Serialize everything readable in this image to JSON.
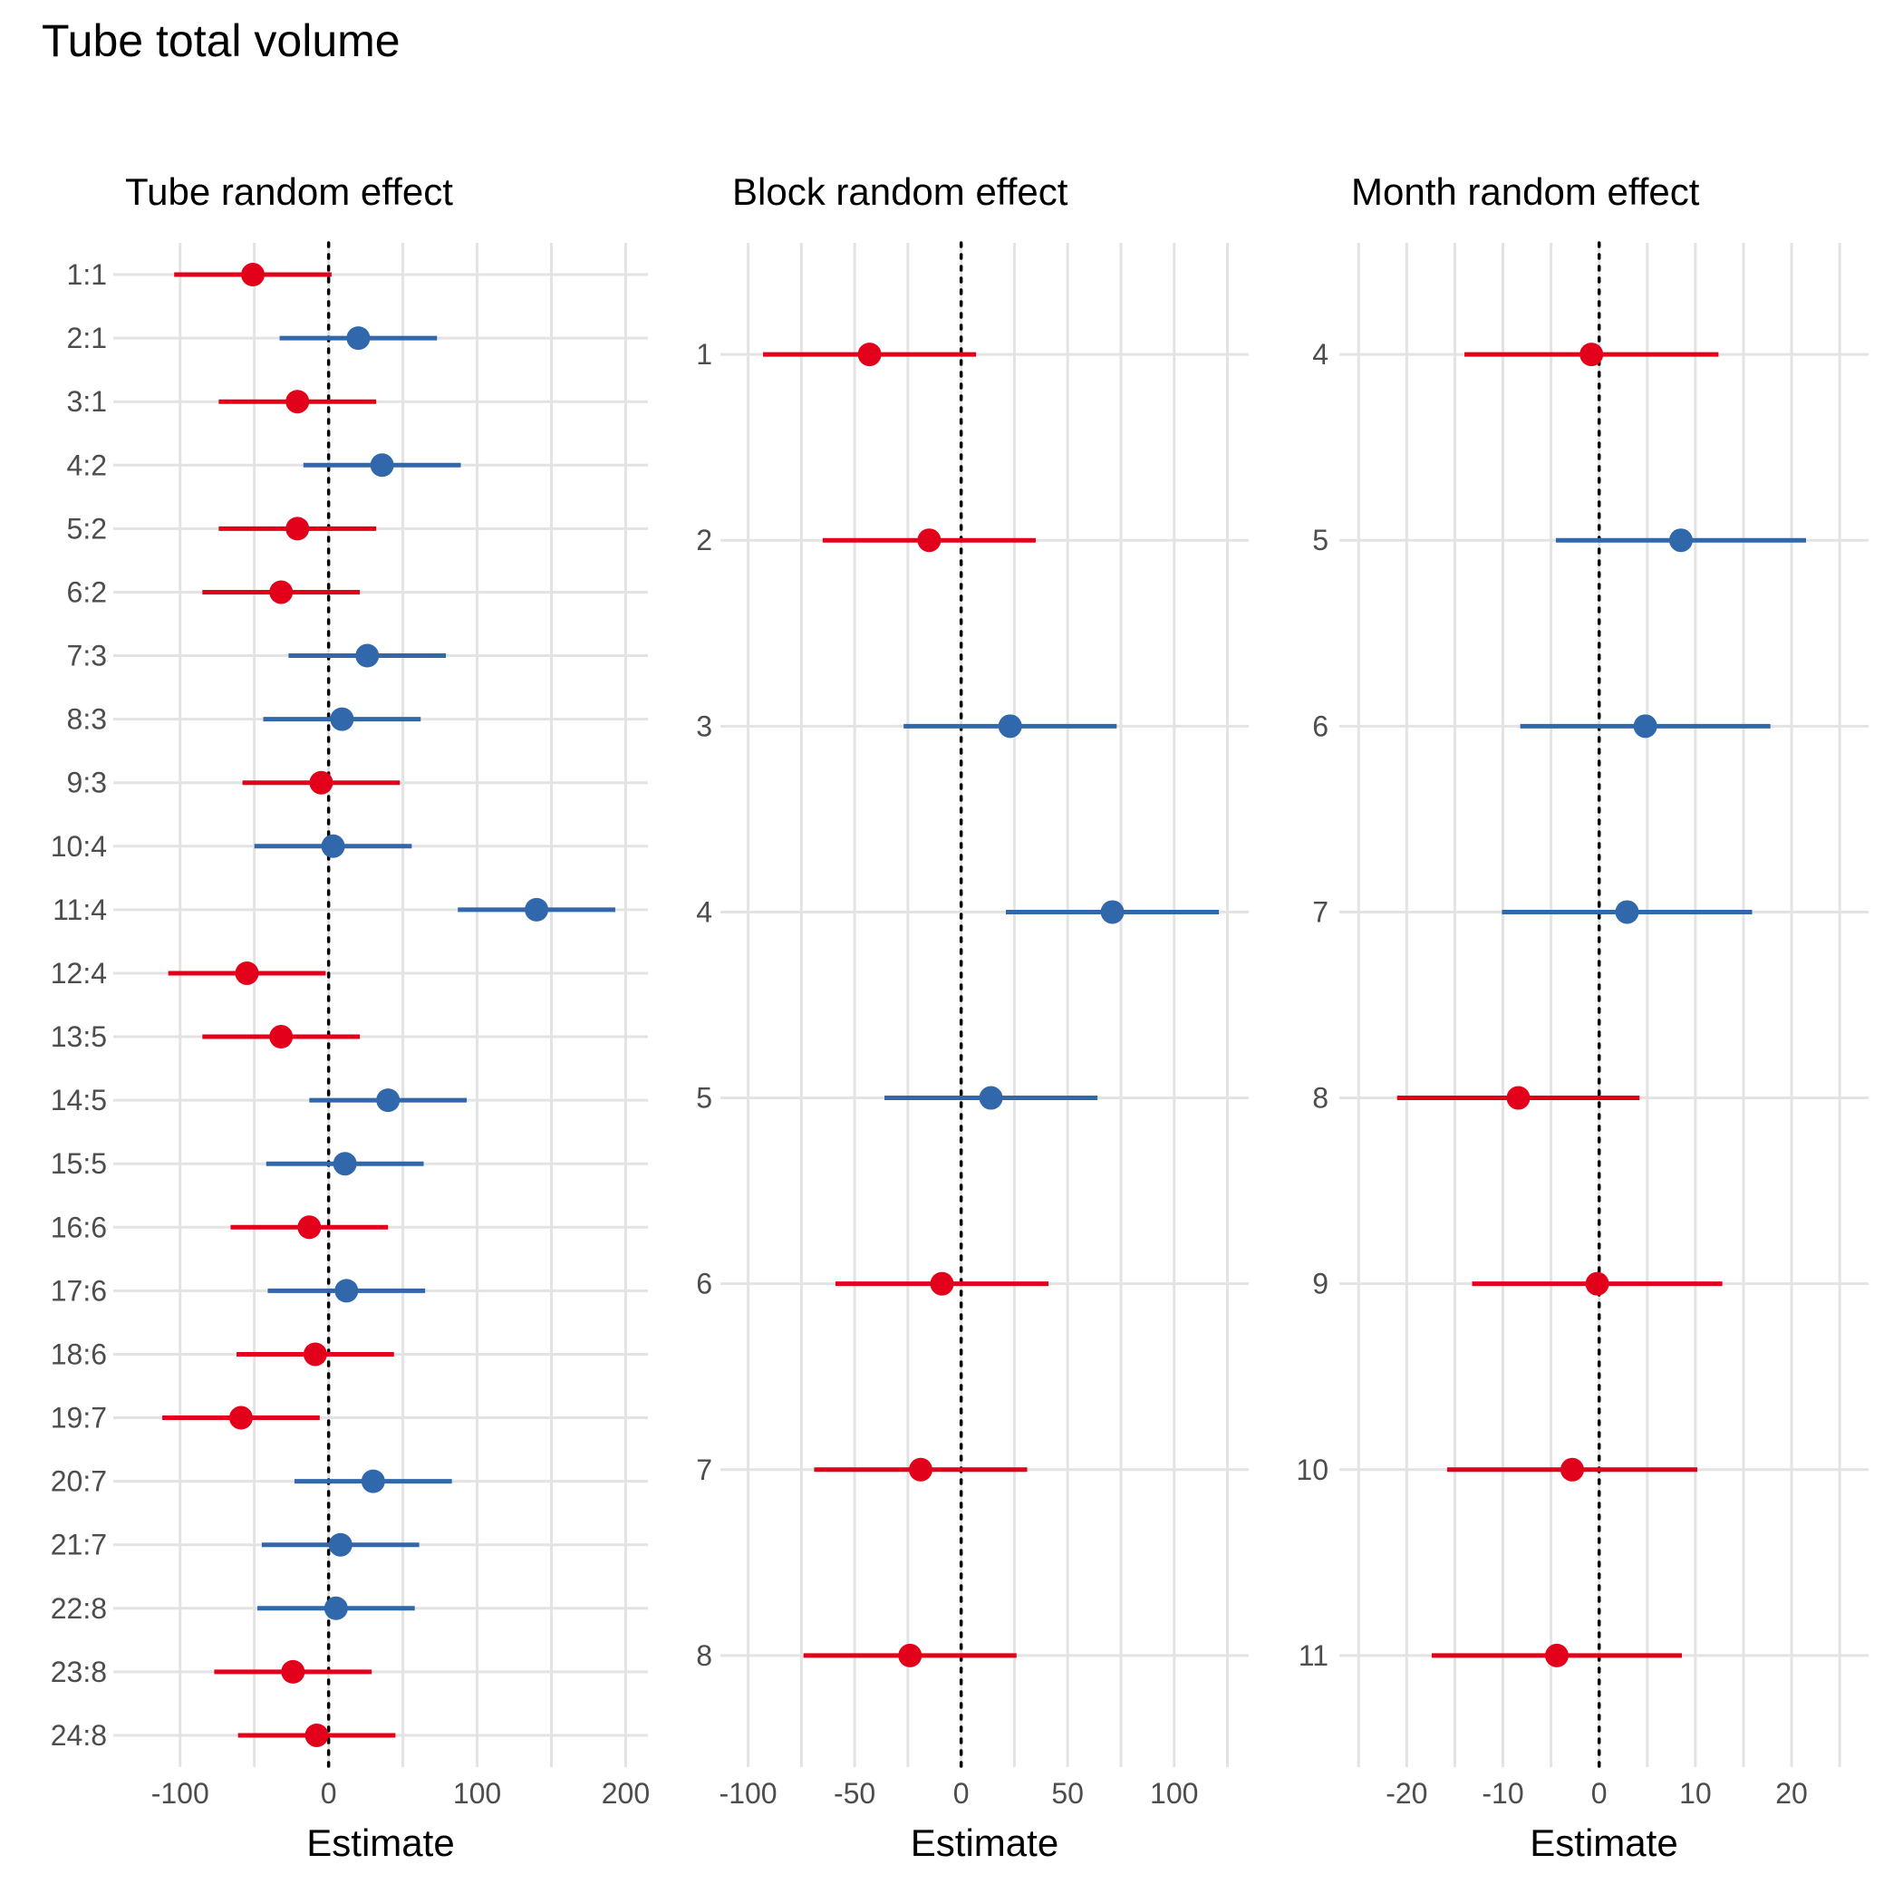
{
  "figure_title": "Tube total volume",
  "colors": {
    "negative": "#e3001b",
    "positive": "#3068ab",
    "zero_line": "#000000",
    "grid": "#e3e3e3"
  },
  "chart_data": [
    {
      "type": "scatter",
      "subtype": "forest",
      "title": "Tube random effect",
      "xlabel": "Estimate",
      "xlim": [
        -145,
        215
      ],
      "xticks": [
        -100,
        0,
        100,
        200
      ],
      "xtick_labels": [
        "-100",
        "0",
        "100",
        "200"
      ],
      "grid": true,
      "reference_line": 0,
      "points": [
        {
          "label": "1:1",
          "estimate": -51,
          "lower": -104,
          "upper": 2
        },
        {
          "label": "2:1",
          "estimate": 20,
          "lower": -33,
          "upper": 73
        },
        {
          "label": "3:1",
          "estimate": -21,
          "lower": -74,
          "upper": 32
        },
        {
          "label": "4:2",
          "estimate": 36,
          "lower": -17,
          "upper": 89
        },
        {
          "label": "5:2",
          "estimate": -21,
          "lower": -74,
          "upper": 32
        },
        {
          "label": "6:2",
          "estimate": -32,
          "lower": -85,
          "upper": 21
        },
        {
          "label": "7:3",
          "estimate": 26,
          "lower": -27,
          "upper": 79
        },
        {
          "label": "8:3",
          "estimate": 9,
          "lower": -44,
          "upper": 62
        },
        {
          "label": "9:3",
          "estimate": -5,
          "lower": -58,
          "upper": 48
        },
        {
          "label": "10:4",
          "estimate": 3,
          "lower": -50,
          "upper": 56
        },
        {
          "label": "11:4",
          "estimate": 140,
          "lower": 87,
          "upper": 193
        },
        {
          "label": "12:4",
          "estimate": -55,
          "lower": -108,
          "upper": -2
        },
        {
          "label": "13:5",
          "estimate": -32,
          "lower": -85,
          "upper": 21
        },
        {
          "label": "14:5",
          "estimate": 40,
          "lower": -13,
          "upper": 93
        },
        {
          "label": "15:5",
          "estimate": 11,
          "lower": -42,
          "upper": 64
        },
        {
          "label": "16:6",
          "estimate": -13,
          "lower": -66,
          "upper": 40
        },
        {
          "label": "17:6",
          "estimate": 12,
          "lower": -41,
          "upper": 65
        },
        {
          "label": "18:6",
          "estimate": -9,
          "lower": -62,
          "upper": 44
        },
        {
          "label": "19:7",
          "estimate": -59,
          "lower": -112,
          "upper": -6
        },
        {
          "label": "20:7",
          "estimate": 30,
          "lower": -23,
          "upper": 83
        },
        {
          "label": "21:7",
          "estimate": 8,
          "lower": -45,
          "upper": 61
        },
        {
          "label": "22:8",
          "estimate": 5,
          "lower": -48,
          "upper": 58
        },
        {
          "label": "23:8",
          "estimate": -24,
          "lower": -77,
          "upper": 29
        },
        {
          "label": "24:8",
          "estimate": -8,
          "lower": -61,
          "upper": 45
        }
      ]
    },
    {
      "type": "scatter",
      "subtype": "forest",
      "title": "Block random effect",
      "xlabel": "Estimate",
      "xlim": [
        -113,
        135
      ],
      "xticks": [
        -100,
        -50,
        0,
        50,
        100
      ],
      "xtick_labels": [
        "-100",
        "-50",
        "0",
        "50",
        "100"
      ],
      "grid": true,
      "reference_line": 0,
      "points": [
        {
          "label": "1",
          "estimate": -43,
          "lower": -93,
          "upper": 7
        },
        {
          "label": "2",
          "estimate": -15,
          "lower": -65,
          "upper": 35
        },
        {
          "label": "3",
          "estimate": 23,
          "lower": -27,
          "upper": 73
        },
        {
          "label": "4",
          "estimate": 71,
          "lower": 21,
          "upper": 121
        },
        {
          "label": "5",
          "estimate": 14,
          "lower": -36,
          "upper": 64
        },
        {
          "label": "6",
          "estimate": -9,
          "lower": -59,
          "upper": 41
        },
        {
          "label": "7",
          "estimate": -19,
          "lower": -69,
          "upper": 31
        },
        {
          "label": "8",
          "estimate": -24,
          "lower": -74,
          "upper": 26
        }
      ]
    },
    {
      "type": "scatter",
      "subtype": "forest",
      "title": "Month random effect",
      "xlabel": "Estimate",
      "xlim": [
        -27,
        28
      ],
      "xticks": [
        -20,
        -10,
        0,
        10,
        20
      ],
      "xtick_labels": [
        "-20",
        "-10",
        "0",
        "10",
        "20"
      ],
      "grid": true,
      "reference_line": 0,
      "points": [
        {
          "label": "4",
          "estimate": -0.8,
          "lower": -14,
          "upper": 12.4
        },
        {
          "label": "5",
          "estimate": 8.5,
          "lower": -4.5,
          "upper": 21.5
        },
        {
          "label": "6",
          "estimate": 4.8,
          "lower": -8.2,
          "upper": 17.8
        },
        {
          "label": "7",
          "estimate": 2.9,
          "lower": -10.1,
          "upper": 15.9
        },
        {
          "label": "8",
          "estimate": -8.4,
          "lower": -21,
          "upper": 4.2
        },
        {
          "label": "9",
          "estimate": -0.2,
          "lower": -13.2,
          "upper": 12.8
        },
        {
          "label": "10",
          "estimate": -2.8,
          "lower": -15.8,
          "upper": 10.2
        },
        {
          "label": "11",
          "estimate": -4.4,
          "lower": -17.4,
          "upper": 8.6
        }
      ]
    }
  ]
}
